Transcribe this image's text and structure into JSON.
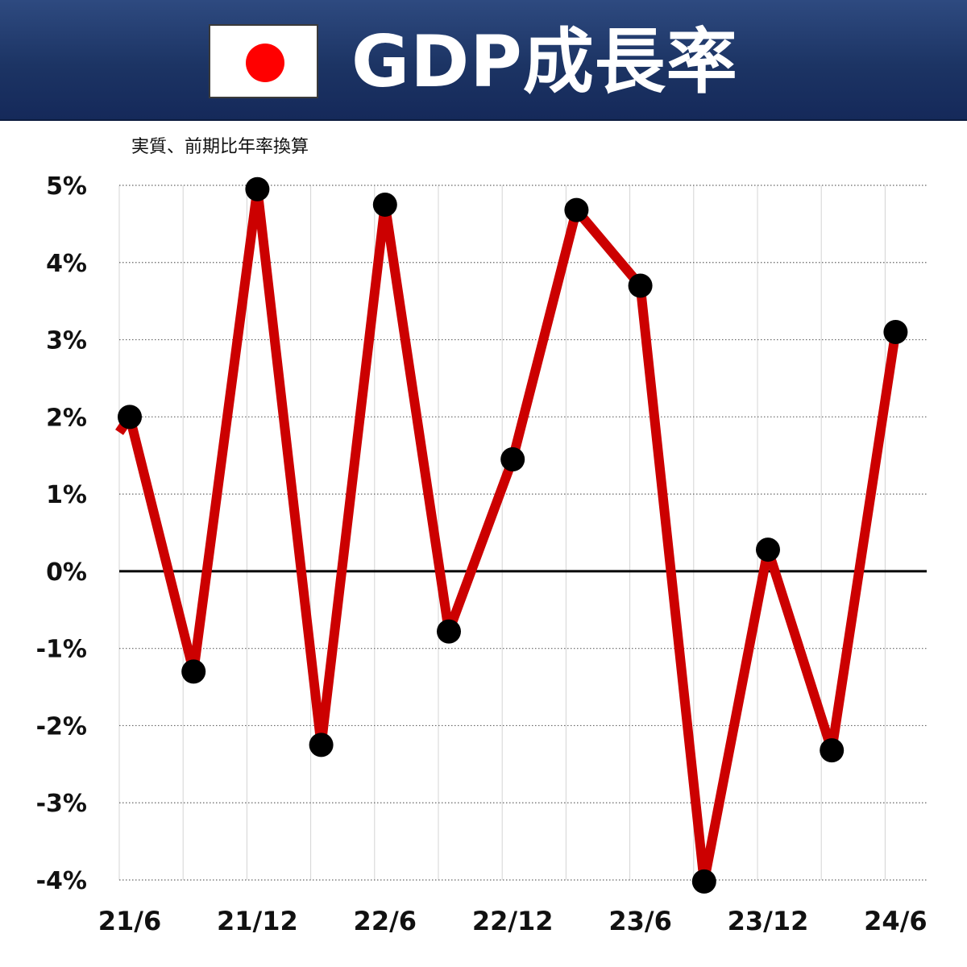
{
  "header": {
    "title": "GDP成長率",
    "flag_icon": "japan-flag-icon"
  },
  "colors": {
    "header_bg": "#1c3464",
    "line": "#cc0000",
    "marker": "#000000",
    "flag_disc": "#ff0000"
  },
  "chart_data": {
    "type": "line",
    "title": "GDP成長率",
    "subtitle": "実質、前期比年率換算",
    "x": [
      "21/6",
      "21/9",
      "21/12",
      "22/3",
      "22/6",
      "22/9",
      "22/12",
      "23/3",
      "23/6",
      "23/9",
      "23/12",
      "24/3",
      "24/6"
    ],
    "x_tick_labels": [
      "21/6",
      "21/12",
      "22/6",
      "22/12",
      "23/6",
      "23/12",
      "24/6"
    ],
    "series": [
      {
        "values": [
          2.0,
          -1.3,
          4.95,
          -2.25,
          4.75,
          -0.78,
          1.45,
          4.68,
          3.7,
          -4.02,
          0.28,
          -2.32,
          3.1
        ]
      }
    ],
    "line_enters_from_left_at": 1.8,
    "y_tick_labels": [
      "5%",
      "4%",
      "3%",
      "2%",
      "1%",
      "0%",
      "-1%",
      "-2%",
      "-3%",
      "-4%"
    ],
    "ylim": [
      -4,
      5
    ],
    "grid": "horizontal dotted, vertical light",
    "zero_line": true
  }
}
